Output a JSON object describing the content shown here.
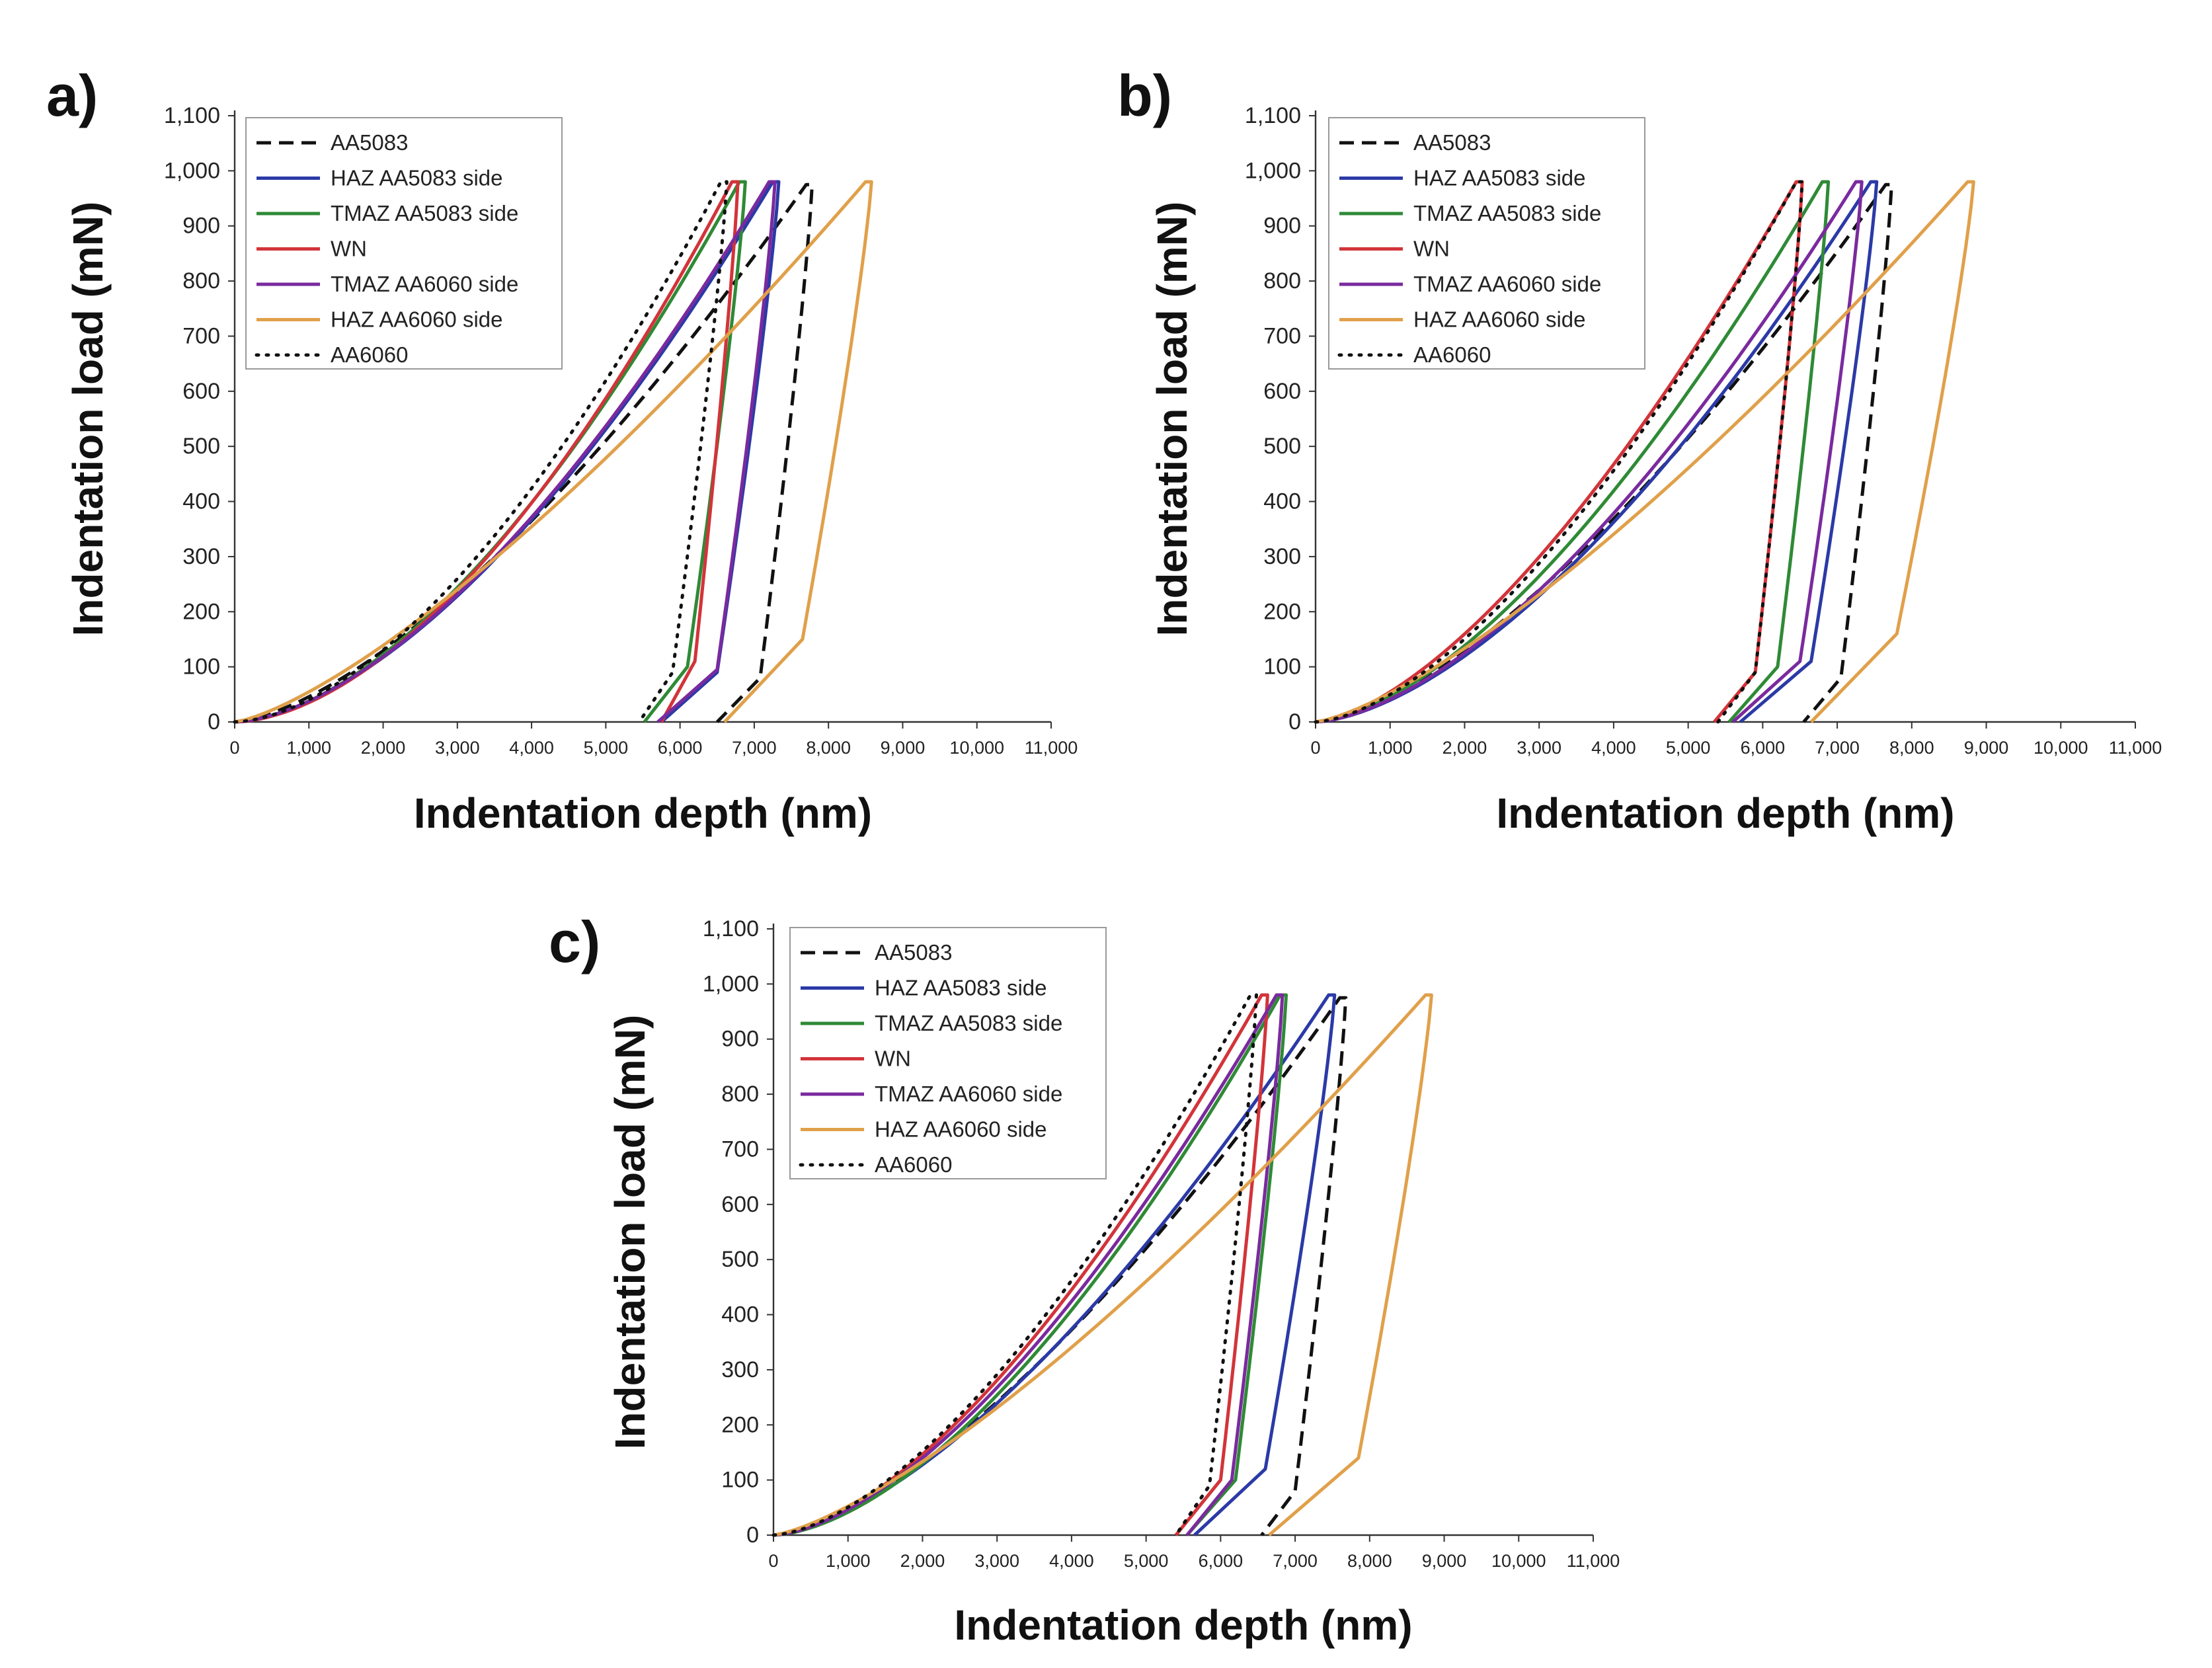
{
  "figure": {
    "series_styles": [
      {
        "name": "AA5083",
        "color": "#111111",
        "dash": "dashed"
      },
      {
        "name": "HAZ AA5083 side",
        "color": "#2b3aa6",
        "dash": "solid"
      },
      {
        "name": "TMAZ AA5083 side",
        "color": "#2f8a36",
        "dash": "solid"
      },
      {
        "name": "WN",
        "color": "#d2343a",
        "dash": "solid"
      },
      {
        "name": "TMAZ AA6060 side",
        "color": "#7a2a9e",
        "dash": "solid"
      },
      {
        "name": "HAZ AA6060 side",
        "color": "#e0a04a",
        "dash": "solid"
      },
      {
        "name": "AA6060",
        "color": "#111111",
        "dash": "dotted"
      }
    ]
  },
  "chart_data": [
    {
      "panel": "a)",
      "type": "line",
      "xlabel": "Indentation depth (nm)",
      "ylabel": "Indentation load (mN)",
      "xlim": [
        0,
        11000
      ],
      "ylim": [
        0,
        1100
      ],
      "x_ticks": [
        "0",
        "1,000",
        "2,000",
        "3,000",
        "4,000",
        "5,000",
        "6,000",
        "7,000",
        "8,000",
        "9,000",
        "10,000",
        "11,000"
      ],
      "y_ticks": [
        "0",
        "100",
        "200",
        "300",
        "400",
        "500",
        "600",
        "700",
        "800",
        "900",
        "1,000",
        "1,100"
      ],
      "legend": [
        "AA5083",
        "HAZ AA5083 side",
        "TMAZ AA5083 side",
        "WN",
        "TMAZ AA6060 side",
        "HAZ AA6060 side",
        "AA6060"
      ],
      "legend_position": "top-left",
      "series": [
        {
          "name": "AA5083",
          "max_depth": 7700,
          "peak_load": 975,
          "load_exp": 1.5,
          "knee_depth": 7080,
          "knee_load": 80,
          "final_depth": 6500
        },
        {
          "name": "HAZ AA5083 side",
          "max_depth": 7250,
          "peak_load": 980,
          "load_exp": 1.65,
          "knee_depth": 6500,
          "knee_load": 90,
          "final_depth": 5750
        },
        {
          "name": "TMAZ AA5083 side",
          "max_depth": 6800,
          "peak_load": 980,
          "load_exp": 1.7,
          "knee_depth": 6100,
          "knee_load": 100,
          "final_depth": 5520
        },
        {
          "name": "WN",
          "max_depth": 6700,
          "peak_load": 980,
          "load_exp": 1.75,
          "knee_depth": 6200,
          "knee_load": 110,
          "final_depth": 5750
        },
        {
          "name": "TMAZ AA6060 side",
          "max_depth": 7200,
          "peak_load": 980,
          "load_exp": 1.65,
          "knee_depth": 6500,
          "knee_load": 95,
          "final_depth": 5700
        },
        {
          "name": "HAZ AA6060 side",
          "max_depth": 8500,
          "peak_load": 980,
          "load_exp": 1.35,
          "knee_depth": 7650,
          "knee_load": 150,
          "final_depth": 6600
        },
        {
          "name": "AA6060",
          "max_depth": 6550,
          "peak_load": 980,
          "load_exp": 1.7,
          "knee_depth": 5900,
          "knee_load": 90,
          "final_depth": 5450
        }
      ]
    },
    {
      "panel": "b)",
      "type": "line",
      "xlabel": "Indentation depth (nm)",
      "ylabel": "Indentation load (mN)",
      "xlim": [
        0,
        11000
      ],
      "ylim": [
        0,
        1100
      ],
      "x_ticks": [
        "0",
        "1,000",
        "2,000",
        "3,000",
        "4,000",
        "5,000",
        "6,000",
        "7,000",
        "8,000",
        "9,000",
        "10,000",
        "11,000"
      ],
      "y_ticks": [
        "0",
        "100",
        "200",
        "300",
        "400",
        "500",
        "600",
        "700",
        "800",
        "900",
        "1,000",
        "1,100"
      ],
      "legend": [
        "AA5083",
        "HAZ AA5083 side",
        "TMAZ AA5083 side",
        "WN",
        "TMAZ AA6060 side",
        "HAZ AA6060 side",
        "AA6060"
      ],
      "legend_position": "top-left",
      "series": [
        {
          "name": "AA5083",
          "max_depth": 7650,
          "peak_load": 975,
          "load_exp": 1.5,
          "knee_depth": 7050,
          "knee_load": 80,
          "final_depth": 6550
        },
        {
          "name": "HAZ AA5083 side",
          "max_depth": 7450,
          "peak_load": 980,
          "load_exp": 1.6,
          "knee_depth": 6650,
          "knee_load": 110,
          "final_depth": 5700
        },
        {
          "name": "TMAZ AA5083 side",
          "max_depth": 6800,
          "peak_load": 980,
          "load_exp": 1.6,
          "knee_depth": 6200,
          "knee_load": 100,
          "final_depth": 5550
        },
        {
          "name": "WN",
          "max_depth": 6450,
          "peak_load": 980,
          "load_exp": 1.55,
          "knee_depth": 5900,
          "knee_load": 90,
          "final_depth": 5350
        },
        {
          "name": "TMAZ AA6060 side",
          "max_depth": 7250,
          "peak_load": 980,
          "load_exp": 1.6,
          "knee_depth": 6500,
          "knee_load": 110,
          "final_depth": 5600
        },
        {
          "name": "HAZ AA6060 side",
          "max_depth": 8750,
          "peak_load": 980,
          "load_exp": 1.35,
          "knee_depth": 7800,
          "knee_load": 160,
          "final_depth": 6650
        },
        {
          "name": "AA6060",
          "max_depth": 6450,
          "peak_load": 980,
          "load_exp": 1.6,
          "knee_depth": 5900,
          "knee_load": 90,
          "final_depth": 5400
        }
      ]
    },
    {
      "panel": "c)",
      "type": "line",
      "xlabel": "Indentation depth (nm)",
      "ylabel": "Indentation load (mN)",
      "xlim": [
        0,
        11000
      ],
      "ylim": [
        0,
        1100
      ],
      "x_ticks": [
        "0",
        "1,000",
        "2,000",
        "3,000",
        "4,000",
        "5,000",
        "6,000",
        "7,000",
        "8,000",
        "9,000",
        "10,000",
        "11,000"
      ],
      "y_ticks": [
        "0",
        "100",
        "200",
        "300",
        "400",
        "500",
        "600",
        "700",
        "800",
        "900",
        "1,000",
        "1,100"
      ],
      "legend": [
        "AA5083",
        "HAZ AA5083 side",
        "TMAZ AA5083 side",
        "WN",
        "TMAZ AA6060 side",
        "HAZ AA6060 side",
        "AA6060"
      ],
      "legend_position": "top-left",
      "series": [
        {
          "name": "AA5083",
          "max_depth": 7600,
          "peak_load": 975,
          "load_exp": 1.5,
          "knee_depth": 7000,
          "knee_load": 80,
          "final_depth": 6550
        },
        {
          "name": "HAZ AA5083 side",
          "max_depth": 7450,
          "peak_load": 980,
          "load_exp": 1.55,
          "knee_depth": 6600,
          "knee_load": 120,
          "final_depth": 5650
        },
        {
          "name": "TMAZ AA5083 side",
          "max_depth": 6800,
          "peak_load": 980,
          "load_exp": 1.65,
          "knee_depth": 6200,
          "knee_load": 100,
          "final_depth": 5550
        },
        {
          "name": "WN",
          "max_depth": 6550,
          "peak_load": 980,
          "load_exp": 1.6,
          "knee_depth": 6000,
          "knee_load": 100,
          "final_depth": 5400
        },
        {
          "name": "TMAZ AA6060 side",
          "max_depth": 6750,
          "peak_load": 980,
          "load_exp": 1.6,
          "knee_depth": 6150,
          "knee_load": 100,
          "final_depth": 5550
        },
        {
          "name": "HAZ AA6060 side",
          "max_depth": 8750,
          "peak_load": 980,
          "load_exp": 1.35,
          "knee_depth": 7850,
          "knee_load": 140,
          "final_depth": 6650
        },
        {
          "name": "AA6060",
          "max_depth": 6400,
          "peak_load": 980,
          "load_exp": 1.6,
          "knee_depth": 5850,
          "knee_load": 90,
          "final_depth": 5400
        }
      ]
    }
  ]
}
